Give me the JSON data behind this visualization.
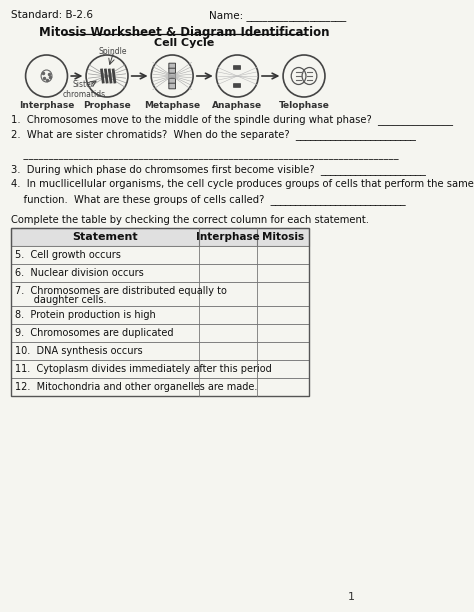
{
  "title": "Mitosis Worksheet & Diagram Identification",
  "standard": "Standard: B-2.6",
  "name_label": "Name: ___________________",
  "cell_cycle_label": "Cell Cycle",
  "phases": [
    "Interphase",
    "Prophase",
    "Metaphase",
    "Anaphase",
    "Telophase"
  ],
  "spindle_label": "Spindle",
  "sister_label": "Sister\nchromatids",
  "questions": [
    "1.  Chromosomes move to the middle of the spindle during what phase?  _______________",
    "2.  What are sister chromatids?  When do the separate?  ________________________",
    "",
    "    ___________________________________________________________________________",
    "3.  During which phase do chromsomes first become visible?  _____________________",
    "4.  In mucllicellular organisms, the cell cycle produces groups of cells that perform the same",
    "    function.  What are these groups of cells called?  ___________________________"
  ],
  "table_intro": "Complete the table by checking the correct column for each statement.",
  "table_headers": [
    "Statement",
    "Interphase",
    "Mitosis"
  ],
  "table_rows": [
    "5.  Cell growth occurs",
    "6.  Nuclear division occurs",
    "7.  Chromosomes are distributed equally to\n      daughter cells.",
    "8.  Protein production is high",
    "9.  Chromosomes are duplicated",
    "10.  DNA synthesis occurs",
    "11.  Cytoplasm divides immediately after this period",
    "12.  Mitochondria and other organelles are made."
  ],
  "page_number": "1",
  "bg_color": "#f5f5f0",
  "text_color": "#111111",
  "line_color": "#555555",
  "table_line_color": "#888888"
}
